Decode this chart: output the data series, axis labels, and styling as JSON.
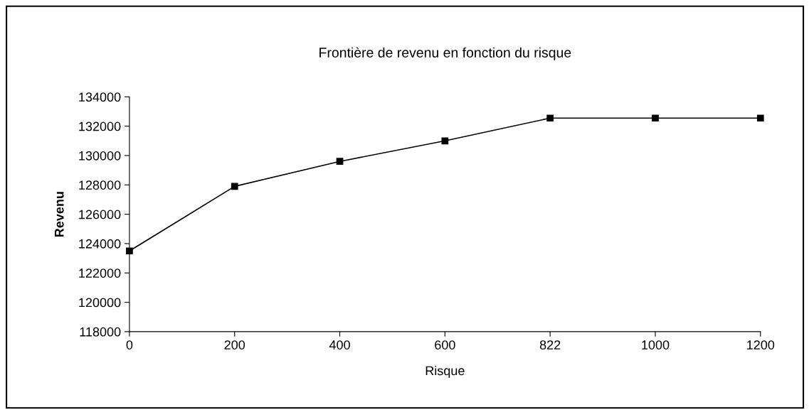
{
  "chart_data": {
    "type": "line",
    "title": "Frontière de revenu en fonction du risque",
    "xlabel": "Risque",
    "ylabel": "Revenu",
    "categories": [
      "0",
      "200",
      "400",
      "600",
      "822",
      "1000",
      "1200"
    ],
    "series": [
      {
        "color": "#000000",
        "values": [
          123500,
          127900,
          129600,
          131000,
          132550,
          132550,
          132550
        ]
      }
    ],
    "ylim": [
      118000,
      134000
    ],
    "yticks": [
      118000,
      120000,
      122000,
      124000,
      126000,
      128000,
      130000,
      132000,
      134000
    ],
    "grid": false,
    "legend": false,
    "marker": "square",
    "line_style": "solid"
  }
}
